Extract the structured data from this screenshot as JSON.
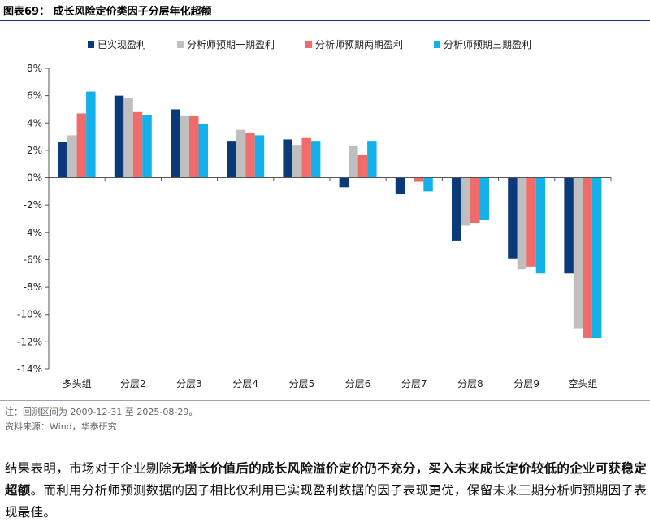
{
  "header": {
    "title": "图表69：  成长风险定价类因子分层年化超额"
  },
  "chart_data": {
    "type": "bar",
    "title": "成长风险定价类因子分层年化超额",
    "xlabel": "",
    "ylabel": "",
    "ylim": [
      -14,
      8
    ],
    "y_ticks": [
      8,
      6,
      4,
      2,
      0,
      -2,
      -4,
      -6,
      -8,
      -10,
      -12,
      -14
    ],
    "y_tick_labels": [
      "8%",
      "6%",
      "4%",
      "2%",
      "0%",
      "-2%",
      "-4%",
      "-6%",
      "-8%",
      "-10%",
      "-12%",
      "-14%"
    ],
    "grid": false,
    "legend_position": "top",
    "categories": [
      "多头组",
      "分层2",
      "分层3",
      "分层4",
      "分层5",
      "分层6",
      "分层7",
      "分层8",
      "分层9",
      "空头组"
    ],
    "series": [
      {
        "name": "已实现盈利",
        "color": "#0b3a7a",
        "values": [
          2.6,
          6.0,
          5.0,
          2.7,
          2.8,
          -0.7,
          -1.2,
          -4.6,
          -5.9,
          -7.0
        ]
      },
      {
        "name": "分析师预期一期盈利",
        "color": "#bfbfbf",
        "values": [
          3.1,
          5.8,
          4.5,
          3.5,
          2.4,
          2.3,
          0.0,
          -3.5,
          -6.7,
          -11.0
        ]
      },
      {
        "name": "分析师预期两期盈利",
        "color": "#f26b6b",
        "values": [
          4.7,
          4.8,
          4.5,
          3.3,
          2.9,
          1.7,
          -0.3,
          -3.3,
          -6.5,
          -11.7
        ]
      },
      {
        "name": "分析师预期三期盈利",
        "color": "#14b0ea",
        "values": [
          6.3,
          4.6,
          3.9,
          3.1,
          2.7,
          2.7,
          -1.0,
          -3.1,
          -7.0,
          -11.7
        ]
      }
    ]
  },
  "footer": {
    "note": "注：回测区间为 2009-12-31 至 2025-08-29。",
    "source": "资料来源：Wind，华泰研究"
  },
  "paragraph": {
    "part1": "结果表明，市场对于企业剔除",
    "bold1": "无增长价值后的成长风险溢价定价仍不充分，买入未来成长定价较低的企业可获稳定超额",
    "part2": "。而利用分析师预测数据的因子相比仅利用已实现盈利数据的因子表现更优，保留未来三期分析师预期因子表现最佳。"
  }
}
